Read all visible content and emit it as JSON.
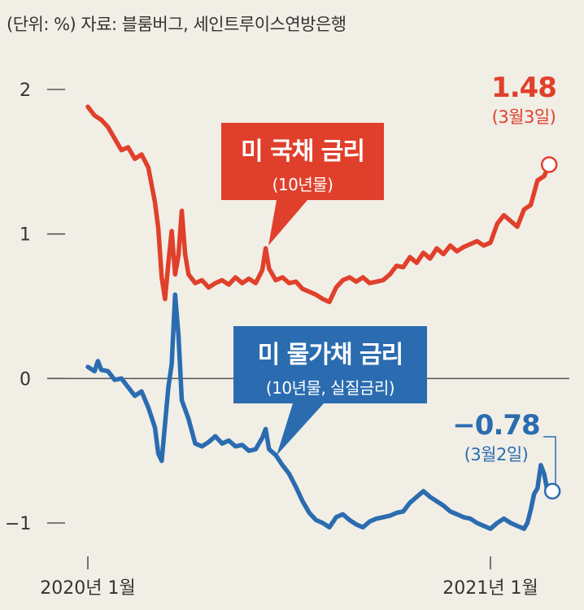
{
  "source_note": "(단위: %) 자료: 블룸버그, 세인트루이스연방은행",
  "colors": {
    "nominal": "#e0402b",
    "real": "#2b6cb0",
    "background": "#f1eee6",
    "axis": "#555555"
  },
  "callouts": {
    "nominal": {
      "title": "미 국채 금리",
      "subtitle": "(10년물)"
    },
    "real": {
      "title": "미 물가채 금리",
      "subtitle": "(10년물, 실질금리)"
    }
  },
  "end_labels": {
    "nominal": {
      "value": "1.48",
      "date": "(3월3일)"
    },
    "real": {
      "value": "−0.78",
      "date": "(3월2일)"
    }
  },
  "chart_data": {
    "type": "line",
    "title": "",
    "ylim": [
      -1.15,
      2.05
    ],
    "xlim": [
      0,
      14
    ],
    "y_ticks": [
      {
        "value": 2,
        "label": "2"
      },
      {
        "value": 1,
        "label": "1"
      },
      {
        "value": 0,
        "label": "0"
      },
      {
        "value": -1,
        "label": "−1"
      }
    ],
    "x_ticks": [
      {
        "value": 0,
        "label": "2020년 1월"
      },
      {
        "value": 12,
        "label": "2021년 1월"
      }
    ],
    "x_unit": "months since 2020-01",
    "grid": false,
    "zero_line": true,
    "series": [
      {
        "name": "미 국채 금리",
        "key": "nominal",
        "points": [
          [
            0.0,
            1.88
          ],
          [
            0.2,
            1.82
          ],
          [
            0.4,
            1.79
          ],
          [
            0.6,
            1.74
          ],
          [
            0.8,
            1.66
          ],
          [
            1.0,
            1.58
          ],
          [
            1.2,
            1.6
          ],
          [
            1.4,
            1.52
          ],
          [
            1.6,
            1.55
          ],
          [
            1.8,
            1.46
          ],
          [
            2.0,
            1.22
          ],
          [
            2.1,
            1.04
          ],
          [
            2.2,
            0.7
          ],
          [
            2.3,
            0.55
          ],
          [
            2.4,
            0.8
          ],
          [
            2.5,
            1.02
          ],
          [
            2.6,
            0.72
          ],
          [
            2.7,
            0.85
          ],
          [
            2.8,
            1.16
          ],
          [
            2.9,
            0.86
          ],
          [
            3.0,
            0.72
          ],
          [
            3.2,
            0.66
          ],
          [
            3.4,
            0.68
          ],
          [
            3.6,
            0.63
          ],
          [
            3.8,
            0.66
          ],
          [
            4.0,
            0.68
          ],
          [
            4.2,
            0.65
          ],
          [
            4.4,
            0.7
          ],
          [
            4.6,
            0.66
          ],
          [
            4.8,
            0.69
          ],
          [
            5.0,
            0.66
          ],
          [
            5.2,
            0.75
          ],
          [
            5.3,
            0.9
          ],
          [
            5.4,
            0.76
          ],
          [
            5.6,
            0.68
          ],
          [
            5.8,
            0.7
          ],
          [
            6.0,
            0.66
          ],
          [
            6.2,
            0.67
          ],
          [
            6.4,
            0.62
          ],
          [
            6.6,
            0.6
          ],
          [
            6.8,
            0.58
          ],
          [
            7.0,
            0.55
          ],
          [
            7.2,
            0.53
          ],
          [
            7.4,
            0.63
          ],
          [
            7.6,
            0.68
          ],
          [
            7.8,
            0.7
          ],
          [
            8.0,
            0.67
          ],
          [
            8.2,
            0.7
          ],
          [
            8.4,
            0.66
          ],
          [
            8.6,
            0.67
          ],
          [
            8.8,
            0.68
          ],
          [
            9.0,
            0.72
          ],
          [
            9.2,
            0.78
          ],
          [
            9.4,
            0.77
          ],
          [
            9.6,
            0.84
          ],
          [
            9.8,
            0.8
          ],
          [
            10.0,
            0.87
          ],
          [
            10.2,
            0.83
          ],
          [
            10.4,
            0.9
          ],
          [
            10.6,
            0.86
          ],
          [
            10.8,
            0.92
          ],
          [
            11.0,
            0.88
          ],
          [
            11.2,
            0.91
          ],
          [
            11.4,
            0.93
          ],
          [
            11.6,
            0.95
          ],
          [
            11.8,
            0.92
          ],
          [
            12.0,
            0.94
          ],
          [
            12.2,
            1.07
          ],
          [
            12.4,
            1.13
          ],
          [
            12.6,
            1.09
          ],
          [
            12.8,
            1.05
          ],
          [
            13.0,
            1.17
          ],
          [
            13.2,
            1.2
          ],
          [
            13.4,
            1.37
          ],
          [
            13.6,
            1.4
          ],
          [
            13.75,
            1.48
          ]
        ]
      },
      {
        "name": "미 물가채 금리",
        "key": "real",
        "points": [
          [
            0.0,
            0.08
          ],
          [
            0.2,
            0.05
          ],
          [
            0.3,
            0.12
          ],
          [
            0.4,
            0.06
          ],
          [
            0.6,
            0.05
          ],
          [
            0.8,
            -0.01
          ],
          [
            1.0,
            0.0
          ],
          [
            1.2,
            -0.06
          ],
          [
            1.4,
            -0.12
          ],
          [
            1.6,
            -0.09
          ],
          [
            1.8,
            -0.2
          ],
          [
            2.0,
            -0.34
          ],
          [
            2.1,
            -0.52
          ],
          [
            2.2,
            -0.57
          ],
          [
            2.4,
            -0.06
          ],
          [
            2.5,
            0.1
          ],
          [
            2.6,
            0.58
          ],
          [
            2.7,
            0.3
          ],
          [
            2.8,
            -0.15
          ],
          [
            3.0,
            -0.28
          ],
          [
            3.2,
            -0.45
          ],
          [
            3.4,
            -0.47
          ],
          [
            3.6,
            -0.44
          ],
          [
            3.8,
            -0.4
          ],
          [
            4.0,
            -0.45
          ],
          [
            4.2,
            -0.43
          ],
          [
            4.4,
            -0.47
          ],
          [
            4.6,
            -0.46
          ],
          [
            4.8,
            -0.5
          ],
          [
            5.0,
            -0.49
          ],
          [
            5.2,
            -0.41
          ],
          [
            5.3,
            -0.35
          ],
          [
            5.4,
            -0.49
          ],
          [
            5.6,
            -0.53
          ],
          [
            5.8,
            -0.6
          ],
          [
            6.0,
            -0.66
          ],
          [
            6.2,
            -0.75
          ],
          [
            6.4,
            -0.85
          ],
          [
            6.6,
            -0.93
          ],
          [
            6.8,
            -0.98
          ],
          [
            7.0,
            -1.0
          ],
          [
            7.2,
            -1.03
          ],
          [
            7.4,
            -0.96
          ],
          [
            7.6,
            -0.94
          ],
          [
            7.8,
            -0.98
          ],
          [
            8.0,
            -1.01
          ],
          [
            8.2,
            -1.03
          ],
          [
            8.4,
            -0.99
          ],
          [
            8.6,
            -0.97
          ],
          [
            8.8,
            -0.96
          ],
          [
            9.0,
            -0.95
          ],
          [
            9.2,
            -0.93
          ],
          [
            9.4,
            -0.92
          ],
          [
            9.6,
            -0.86
          ],
          [
            9.8,
            -0.82
          ],
          [
            10.0,
            -0.78
          ],
          [
            10.2,
            -0.82
          ],
          [
            10.4,
            -0.85
          ],
          [
            10.6,
            -0.88
          ],
          [
            10.8,
            -0.92
          ],
          [
            11.0,
            -0.94
          ],
          [
            11.2,
            -0.96
          ],
          [
            11.4,
            -0.97
          ],
          [
            11.6,
            -1.0
          ],
          [
            11.8,
            -1.02
          ],
          [
            12.0,
            -1.04
          ],
          [
            12.2,
            -1.0
          ],
          [
            12.4,
            -0.97
          ],
          [
            12.6,
            -1.0
          ],
          [
            12.8,
            -1.02
          ],
          [
            13.0,
            -1.04
          ],
          [
            13.1,
            -1.0
          ],
          [
            13.2,
            -0.91
          ],
          [
            13.3,
            -0.8
          ],
          [
            13.4,
            -0.76
          ],
          [
            13.5,
            -0.6
          ],
          [
            13.6,
            -0.66
          ],
          [
            13.7,
            -0.78
          ]
        ]
      }
    ]
  }
}
